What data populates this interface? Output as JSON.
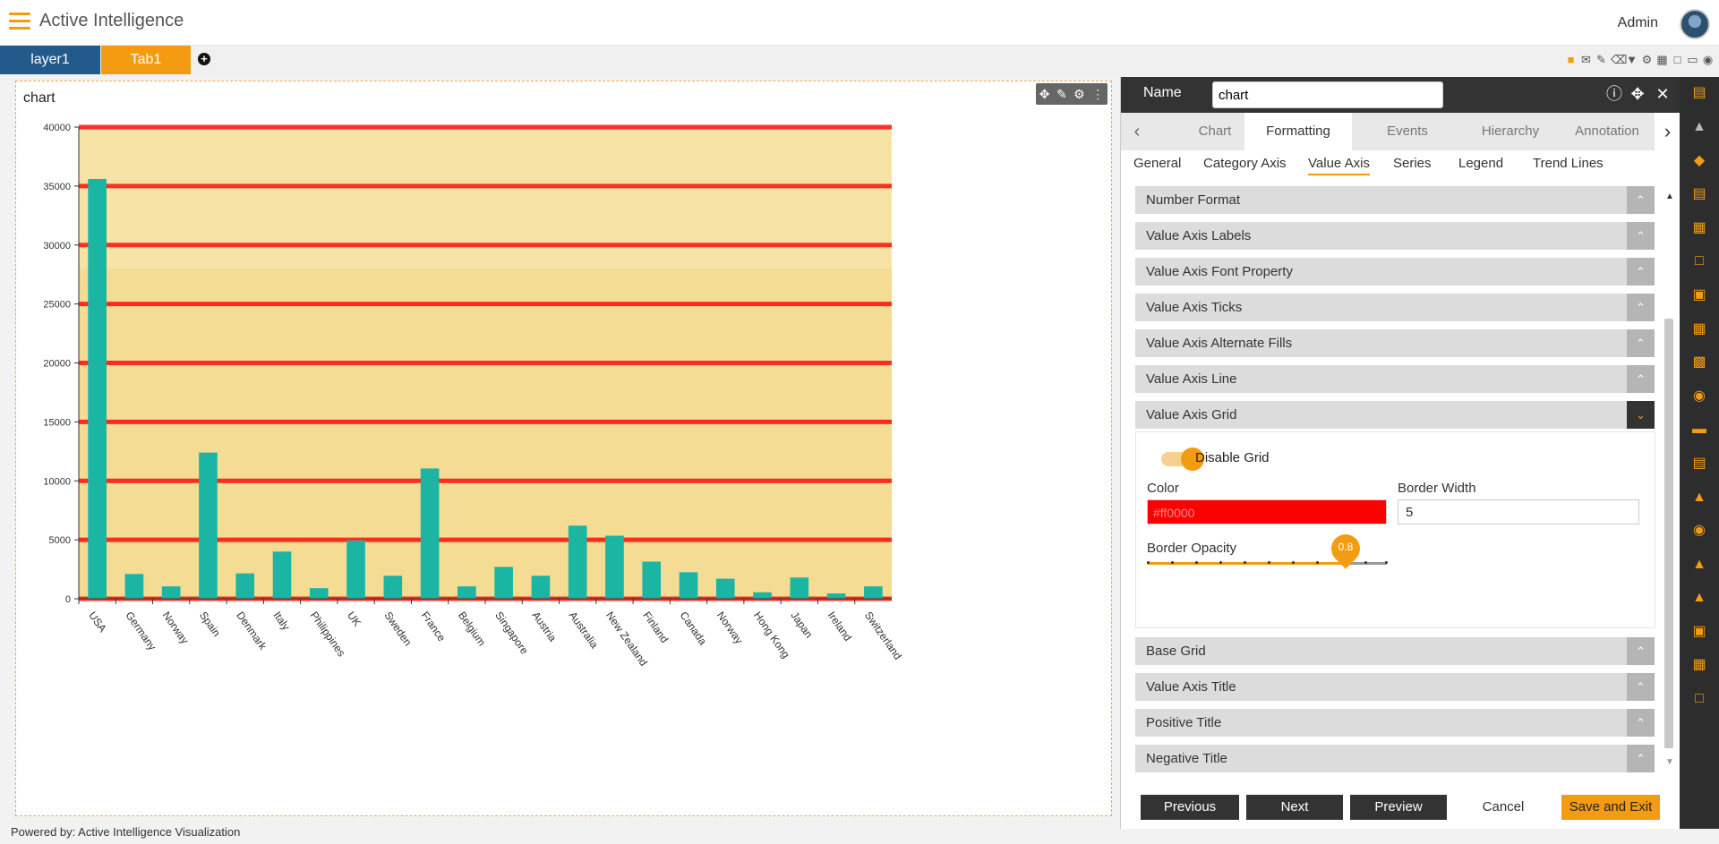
{
  "app": {
    "title": "Active Intelligence",
    "user": "Admin",
    "footer": "Powered by: Active Intelligence Visualization"
  },
  "tabs": [
    {
      "label": "layer1"
    },
    {
      "label": "Tab1"
    }
  ],
  "chart_panel": {
    "title": "chart"
  },
  "chart_data": {
    "type": "bar",
    "title": "chart",
    "categories": [
      "USA",
      "Germany",
      "Norway",
      "Spain",
      "Denmark",
      "Italy",
      "Philippines",
      "UK",
      "Sweden",
      "France",
      "Belgium",
      "Singapore",
      "Austria",
      "Australia",
      "New Zealand",
      "Finland",
      "Canada",
      "Norway",
      "Hong Kong",
      "Japan",
      "Ireland",
      "Switzerland"
    ],
    "values": [
      35600,
      2100,
      1050,
      12400,
      2150,
      4000,
      900,
      4950,
      1950,
      11050,
      1050,
      2700,
      1950,
      6200,
      5350,
      3150,
      2250,
      1700,
      550,
      1800,
      450,
      1050
    ],
    "ylim": [
      0,
      40000
    ],
    "yticks": [
      0,
      5000,
      10000,
      15000,
      20000,
      25000,
      30000,
      35000,
      40000
    ],
    "grid": true,
    "bar_color": "#1ab5a3",
    "grid_color": "#ff0000",
    "plot_background": "#f5dc94"
  },
  "panel": {
    "name_label": "Name",
    "name_value": "chart",
    "main_tabs": [
      "Chart",
      "Formatting",
      "Events",
      "Hierarchy",
      "Annotation"
    ],
    "sub_tabs": [
      "General",
      "Category Axis",
      "Value Axis",
      "Series",
      "Legend",
      "Trend Lines"
    ],
    "sections": [
      "Number Format",
      "Value Axis Labels",
      "Value Axis Font Property",
      "Value Axis Ticks",
      "Value Axis Alternate Fills",
      "Value Axis Line",
      "Value Axis Grid"
    ],
    "sections_after": [
      "Base Grid",
      "Value Axis Title",
      "Positive Title",
      "Negative Title"
    ],
    "grid": {
      "toggle_label": "Disable Grid",
      "color_label": "Color",
      "color_value": "#ff0000",
      "color_text": "#ff0000",
      "border_width_label": "Border Width",
      "border_width_value": "5",
      "border_opacity_label": "Border Opacity",
      "border_opacity_value": "0.8",
      "opacity_fraction": 0.8
    },
    "buttons": {
      "previous": "Previous",
      "next": "Next",
      "preview": "Preview",
      "cancel": "Cancel",
      "save": "Save and Exit"
    }
  },
  "icons": {
    "toolbar": [
      "save-icon",
      "mail-icon",
      "comment-icon",
      "eraser-icon",
      "filter-icon",
      "gear-icon",
      "table-icon",
      "window-icon",
      "monitor-icon",
      "eye-icon"
    ],
    "sidebar": [
      "dashboard-icon",
      "chart-icon",
      "shapes-icon",
      "document-icon",
      "page-icon",
      "crop-icon",
      "image-icon",
      "table-icon",
      "copy-icon",
      "cubes-icon",
      "layout-icon",
      "report-icon",
      "hierarchy-icon",
      "eye-icon",
      "alert-icon",
      "upload-icon",
      "presentation-icon",
      "grid-icon",
      "square-icon"
    ]
  }
}
